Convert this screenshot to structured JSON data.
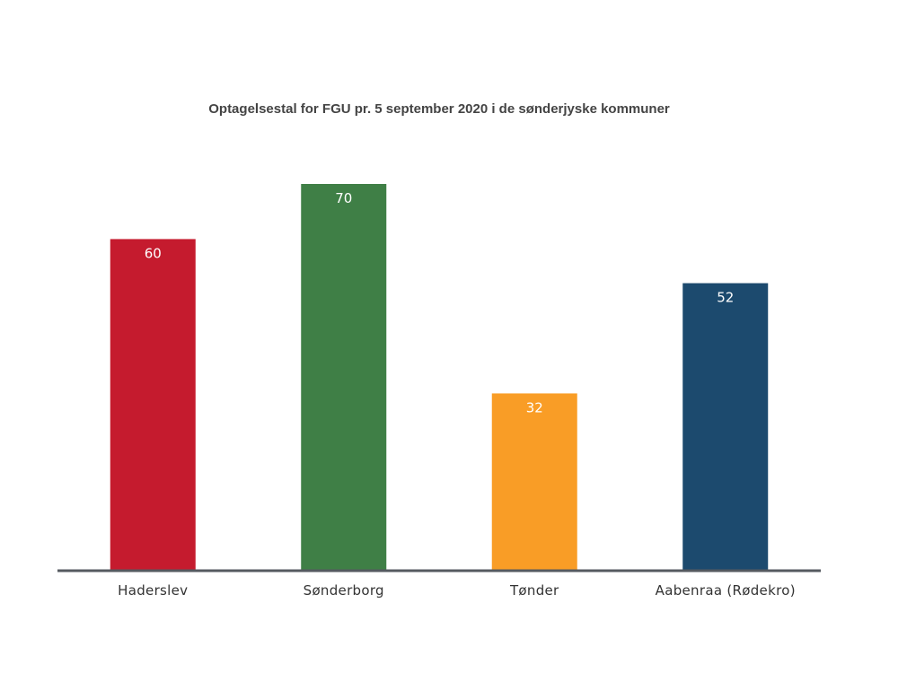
{
  "chart_data": {
    "type": "bar",
    "title": "Optagelsestal for FGU pr. 5 september 2020 i de sønderjyske kommuner",
    "categories": [
      "Haderslev",
      "Sønderborg",
      "Tønder",
      "Aabenraa (Rødekro)"
    ],
    "values": [
      60,
      70,
      32,
      52
    ],
    "colors": [
      "#c51b2e",
      "#3f7f46",
      "#f99d26",
      "#1c4a6e"
    ],
    "data_labels": true,
    "ylim": [
      0,
      70
    ],
    "grid": false,
    "legend": "none"
  }
}
